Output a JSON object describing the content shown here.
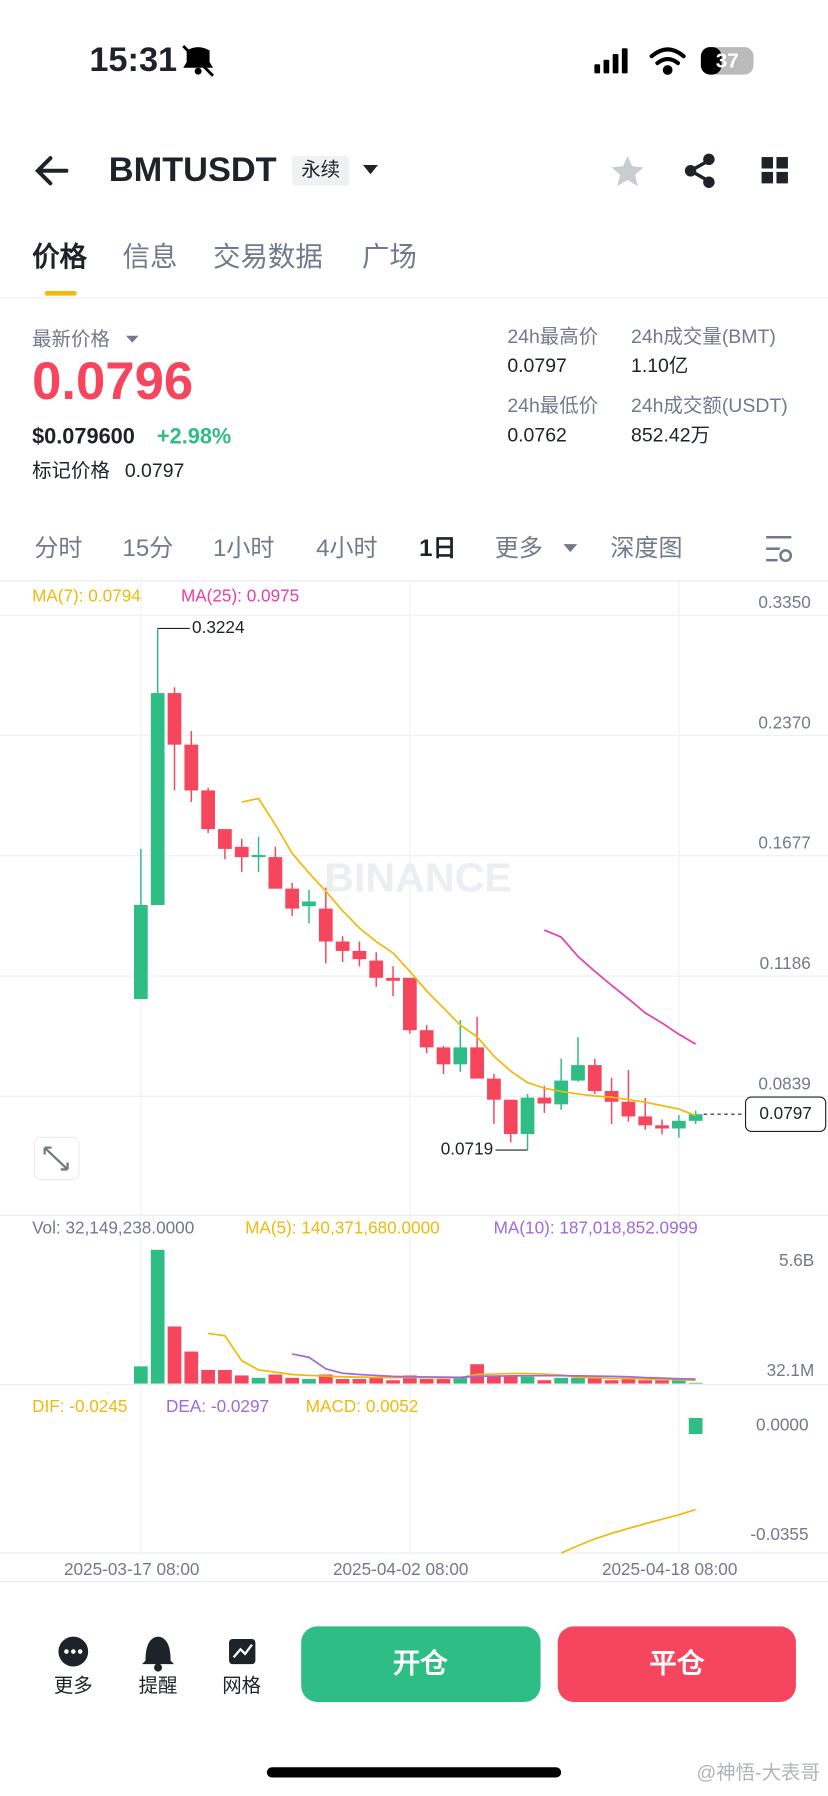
{
  "status_bar": {
    "time": "15:31",
    "battery": "37"
  },
  "header": {
    "symbol": "BMTUSDT",
    "contract": "永续"
  },
  "tabs": [
    "价格",
    "信息",
    "交易数据",
    "广场"
  ],
  "price": {
    "label": "最新价格",
    "last": "0.0796",
    "usd": "$0.079600",
    "change": "+2.98%",
    "mark_label": "标记价格",
    "mark": "0.0797"
  },
  "stats": [
    {
      "label": "24h最高价",
      "value": "0.0797"
    },
    {
      "label": "24h成交量(BMT)",
      "value": "1.10亿"
    },
    {
      "label": "24h最低价",
      "value": "0.0762"
    },
    {
      "label": "24h成交额(USDT)",
      "value": "852.42万"
    }
  ],
  "intervals": [
    "分时",
    "15分",
    "1小时",
    "4小时",
    "1日",
    "更多",
    "深度图"
  ],
  "chart_data": [
    {
      "type": "candlestick",
      "watermark": "BINANCE",
      "log_scale": true,
      "up_color": "#2ebd85",
      "down_color": "#f6465d",
      "ylim": [
        0.0598,
        0.3686
      ],
      "yticks": [
        {
          "value": 0.335,
          "label": "0.3350"
        },
        {
          "value": 0.237,
          "label": "0.2370"
        },
        0.1677,
        0.1186,
        0.0839
      ],
      "open": [
        0.111,
        0.1455,
        0.2677,
        0.2308,
        0.2023,
        0.181,
        0.172,
        0.167,
        0.167,
        0.1525,
        0.145,
        0.144,
        0.131,
        0.1275,
        0.124,
        0.118,
        0.118,
        0.1015,
        0.0966,
        0.092,
        0.0966,
        0.0883,
        0.0831,
        0.0753,
        0.0836,
        0.082,
        0.0878,
        0.0918,
        0.0852,
        0.0826,
        0.0792,
        0.0772,
        0.0765,
        0.0782
      ],
      "high": [
        0.171,
        0.3224,
        0.2722,
        0.24,
        0.204,
        0.181,
        0.176,
        0.177,
        0.172,
        0.155,
        0.152,
        0.153,
        0.133,
        0.131,
        0.127,
        0.122,
        0.118,
        0.103,
        0.097,
        0.1045,
        0.1055,
        0.0895,
        0.0831,
        0.0845,
        0.0865,
        0.0935,
        0.0995,
        0.0935,
        0.0885,
        0.0905,
        0.0835,
        0.0785,
        0.0795,
        0.0805
      ],
      "low": [
        0.111,
        0.1455,
        0.2023,
        0.1957,
        0.179,
        0.166,
        0.16,
        0.16,
        0.1525,
        0.141,
        0.138,
        0.123,
        0.1235,
        0.122,
        0.115,
        0.112,
        0.1005,
        0.095,
        0.0895,
        0.09,
        0.0883,
        0.0775,
        0.0735,
        0.0719,
        0.08,
        0.0807,
        0.0875,
        0.0845,
        0.0775,
        0.078,
        0.0762,
        0.0752,
        0.0745,
        0.0775
      ],
      "close": [
        0.1455,
        0.2677,
        0.2308,
        0.2023,
        0.181,
        0.171,
        0.167,
        0.168,
        0.1525,
        0.144,
        0.147,
        0.131,
        0.1275,
        0.1245,
        0.118,
        0.117,
        0.1015,
        0.0966,
        0.092,
        0.0966,
        0.0883,
        0.0831,
        0.0753,
        0.0836,
        0.0822,
        0.0878,
        0.0918,
        0.0852,
        0.0826,
        0.0792,
        0.0772,
        0.0765,
        0.0782,
        0.0797
      ],
      "series": [
        {
          "name": "MA(7): 0.0794",
          "color": "#f0b90b",
          "values": [
            null,
            null,
            null,
            null,
            null,
            null,
            0.1957,
            0.1977,
            0.1833,
            0.1688,
            0.1596,
            0.1514,
            0.1431,
            0.1362,
            0.131,
            0.1267,
            0.1202,
            0.1136,
            0.1082,
            0.103,
            0.0996,
            0.0942,
            0.0902,
            0.0873,
            0.0859,
            0.0851,
            0.0845,
            0.084,
            0.0837,
            0.0831,
            0.0825,
            0.0817,
            0.0809,
            0.0794
          ]
        },
        {
          "name": "MA(25): 0.0975",
          "color": "#e93cac",
          "values": [
            null,
            null,
            null,
            null,
            null,
            null,
            null,
            null,
            null,
            null,
            null,
            null,
            null,
            null,
            null,
            null,
            null,
            null,
            null,
            null,
            null,
            null,
            null,
            null,
            0.1354,
            0.1327,
            0.1255,
            0.1202,
            0.1155,
            0.1111,
            0.1067,
            0.1036,
            0.1003,
            0.0975
          ]
        }
      ],
      "annotations": [
        {
          "value": 0.3224,
          "label": "0.3224"
        },
        {
          "value": 0.0719,
          "label": "0.0719"
        }
      ],
      "last_price": {
        "value": 0.0797,
        "label": "0.0797"
      }
    },
    {
      "type": "bar",
      "title": "Vol: 32,149,238.0000",
      "ylim": [
        0,
        7000000000
      ],
      "yticks": [
        {
          "value": 5600000000,
          "label": "5.6B"
        },
        {
          "value": 32100000,
          "label": "32.1M"
        }
      ],
      "values": [
        720000000,
        5600000000,
        2390000000,
        1340000000,
        570000000,
        570000000,
        340000000,
        240000000,
        380000000,
        240000000,
        190000000,
        380000000,
        190000000,
        190000000,
        290000000,
        140000000,
        340000000,
        190000000,
        190000000,
        240000000,
        810000000,
        340000000,
        340000000,
        290000000,
        140000000,
        240000000,
        240000000,
        240000000,
        140000000,
        190000000,
        140000000,
        140000000,
        140000000,
        32149238
      ],
      "series": [
        {
          "name": "MA(5): 140,371,680.0000",
          "color": "#f0b90b",
          "values": [
            null,
            null,
            null,
            null,
            2100000000,
            2000000000,
            960000000,
            570000000,
            480000000,
            380000000,
            340000000,
            310000000,
            290000000,
            270000000,
            260000000,
            250000000,
            260000000,
            250000000,
            240000000,
            250000000,
            380000000,
            400000000,
            420000000,
            420000000,
            400000000,
            360000000,
            260000000,
            250000000,
            220000000,
            210000000,
            190000000,
            180000000,
            160000000,
            140371680
          ]
        },
        {
          "name": "MA(10): 187,018,852.0999",
          "color": "#9c6ade",
          "values": [
            null,
            null,
            null,
            null,
            null,
            null,
            null,
            null,
            null,
            1240000000,
            1100000000,
            620000000,
            430000000,
            380000000,
            340000000,
            300000000,
            290000000,
            280000000,
            270000000,
            260000000,
            300000000,
            310000000,
            320000000,
            330000000,
            330000000,
            330000000,
            320000000,
            310000000,
            300000000,
            290000000,
            250000000,
            230000000,
            200000000,
            187018852
          ]
        }
      ]
    },
    {
      "type": "macd",
      "ylim": [
        -0.0386,
        0.0156
      ],
      "yticks": [
        {
          "value": 0,
          "label": "0.0000"
        },
        -0.0355
      ],
      "categories": [
        "2025-03-17 08:00",
        null,
        null,
        null,
        null,
        null,
        null,
        null,
        null,
        null,
        null,
        null,
        null,
        null,
        null,
        null,
        "2025-04-02 08:00",
        null,
        null,
        null,
        null,
        null,
        null,
        null,
        null,
        null,
        null,
        null,
        null,
        null,
        null,
        null,
        "2025-04-18 08:00",
        null
      ],
      "series": [
        {
          "name": "DIF: -0.0245",
          "color": "#f0b90b",
          "values": [
            null,
            null,
            null,
            null,
            null,
            null,
            null,
            null,
            null,
            null,
            null,
            null,
            null,
            null,
            null,
            null,
            null,
            null,
            null,
            null,
            null,
            null,
            null,
            null,
            null,
            -0.0386,
            -0.0362,
            -0.034,
            -0.0322,
            -0.0306,
            -0.0291,
            -0.0276,
            -0.0262,
            -0.0245
          ]
        },
        {
          "name": "DEA: -0.0297",
          "color": "#9c6ade",
          "values": [
            null,
            null,
            null,
            null,
            null,
            null,
            null,
            null,
            null,
            null,
            null,
            null,
            null,
            null,
            null,
            null,
            null,
            null,
            null,
            null,
            null,
            null,
            null,
            null,
            null,
            null,
            null,
            null,
            null,
            null,
            null,
            null,
            null,
            -0.0297
          ]
        }
      ],
      "histogram": {
        "name": "MACD: 0.0052",
        "color": "#2ebd85",
        "values": [
          null,
          null,
          null,
          null,
          null,
          null,
          null,
          null,
          null,
          null,
          null,
          null,
          null,
          null,
          null,
          null,
          null,
          null,
          null,
          null,
          null,
          null,
          null,
          null,
          null,
          null,
          null,
          null,
          null,
          null,
          null,
          null,
          null,
          0.0052
        ]
      }
    }
  ],
  "footer": {
    "buttons": [
      "更多",
      "提醒",
      "网格"
    ],
    "open": "开仓",
    "close": "平仓"
  },
  "watermark": "@神悟-大表哥"
}
